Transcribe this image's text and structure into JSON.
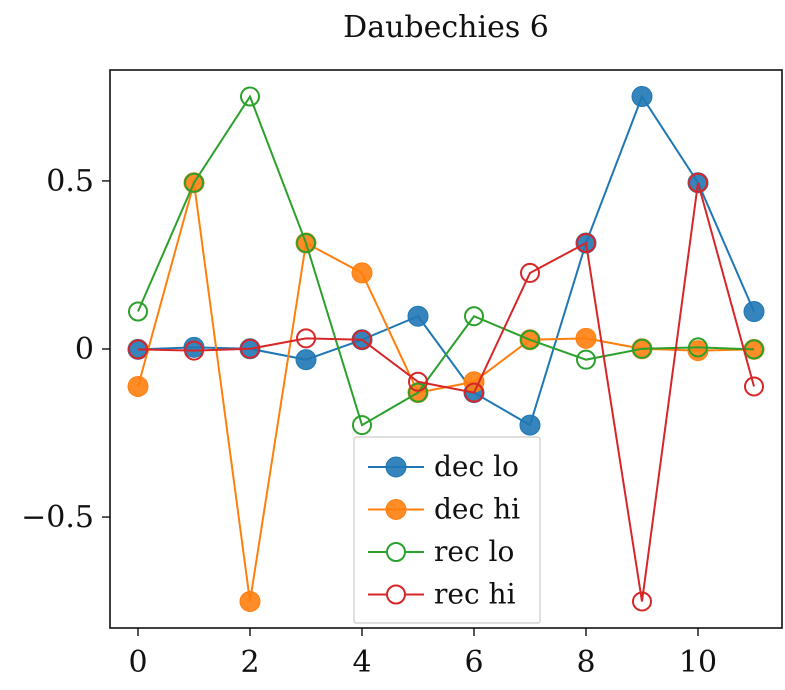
{
  "chart_data": {
    "type": "line",
    "title": "Daubechies 6",
    "xlabel": "",
    "ylabel": "",
    "xlim": [
      -0.5,
      11.5
    ],
    "ylim": [
      -0.83,
      0.83
    ],
    "x": [
      0,
      1,
      2,
      3,
      4,
      5,
      6,
      7,
      8,
      9,
      10,
      11
    ],
    "xticks": [
      0,
      2,
      4,
      6,
      8,
      10
    ],
    "xtick_labels": [
      "0",
      "2",
      "4",
      "6",
      "8",
      "10"
    ],
    "yticks": [
      -0.5,
      0,
      0.5
    ],
    "ytick_labels": [
      "−0.5",
      "0",
      "0.5"
    ],
    "grid": false,
    "legend_position": "bottom-center",
    "series": [
      {
        "name": "dec lo",
        "color": "#1f77b4",
        "marker": "filled",
        "values": [
          -0.0011,
          0.0048,
          0.0006,
          -0.0317,
          0.0275,
          0.0975,
          -0.1298,
          -0.2263,
          0.3153,
          0.7511,
          0.4946,
          0.1115
        ]
      },
      {
        "name": "dec hi",
        "color": "#ff7f0e",
        "marker": "filled",
        "values": [
          -0.1115,
          0.4946,
          -0.7511,
          0.3153,
          0.2263,
          -0.1298,
          -0.0975,
          0.0275,
          0.0317,
          0.0006,
          -0.0048,
          -0.0011
        ]
      },
      {
        "name": "rec lo",
        "color": "#2ca02c",
        "marker": "open",
        "values": [
          0.1115,
          0.4946,
          0.7511,
          0.3153,
          -0.2263,
          -0.1298,
          0.0975,
          0.0275,
          -0.0317,
          0.0006,
          0.0048,
          -0.0011
        ]
      },
      {
        "name": "rec hi",
        "color": "#d62728",
        "marker": "open",
        "values": [
          -0.0011,
          -0.0048,
          0.0006,
          0.0317,
          0.0275,
          -0.0975,
          -0.1298,
          0.2263,
          0.3153,
          -0.7511,
          0.4946,
          -0.1115
        ]
      }
    ]
  }
}
